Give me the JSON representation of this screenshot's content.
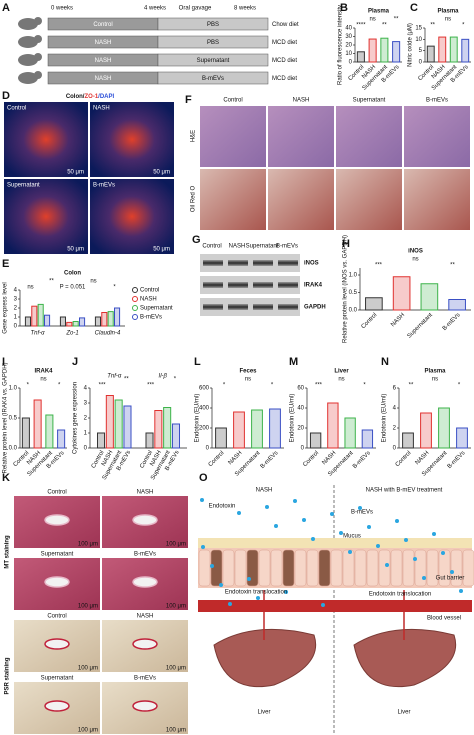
{
  "panel_labels": [
    "A",
    "B",
    "C",
    "D",
    "E",
    "F",
    "G",
    "H",
    "I",
    "J",
    "K",
    "L",
    "M",
    "N",
    "O"
  ],
  "schema": {
    "timeline": [
      "0 weeks",
      "4 weeks",
      "Oral gavage",
      "8 weeks"
    ],
    "rows": [
      {
        "group": "Control",
        "treatment": "PBS",
        "diet": "Chow diet"
      },
      {
        "group": "NASH",
        "treatment": "PBS",
        "diet": "MCD diet"
      },
      {
        "group": "NASH",
        "treatment": "Supernatant",
        "diet": "MCD diet"
      },
      {
        "group": "NASH",
        "treatment": "B-mEVs",
        "diet": "MCD diet"
      }
    ]
  },
  "panel_d": {
    "title_parts": [
      "Colon/",
      "ZO-1",
      "/DAPI"
    ],
    "labels": [
      "Control",
      "NASH",
      "Supernatant",
      "B-mEVs"
    ],
    "scale": "50 μm"
  },
  "panel_f": {
    "columns": [
      "Control",
      "NASH",
      "Supernatant",
      "B-mEVs"
    ],
    "rows": [
      "H&E",
      "Oil Red O"
    ]
  },
  "panel_g": {
    "columns": [
      "Control",
      "NASH",
      "Supernatant",
      "B-mEVs"
    ],
    "bands": [
      "iNOS",
      "IRAK4",
      "GAPDH"
    ]
  },
  "panel_k": {
    "labels": [
      "Control",
      "NASH",
      "Supernatant",
      "B-mEVs"
    ],
    "rows": [
      "MT staining",
      "PSR staining"
    ],
    "scale": "100 μm"
  },
  "panel_o": {
    "titles": [
      "NASH",
      "NASH with B-mEV treatment"
    ],
    "labels": [
      "Endotoxin",
      "B-mEVs",
      "Mucus",
      "Gut barrier",
      "Endotoxin translocation",
      "Endotoxin translocation",
      "Blood vessel",
      "Liver",
      "Liver"
    ]
  },
  "chart_data": [
    {
      "type": "bar",
      "title": "Plasma",
      "ylabel": "Ratio of fluorescence intensity",
      "categories": [
        "Control",
        "NASH",
        "Supernatant",
        "B-mEVs"
      ],
      "values": [
        12,
        27,
        28,
        24
      ],
      "colors": [
        "#333333",
        "#e0312f",
        "#3cb34a",
        "#3a4fc4"
      ],
      "ylim": [
        0,
        40
      ],
      "yticks": [
        0,
        10,
        20,
        30,
        40
      ],
      "annotations": [
        "****",
        "ns",
        "**",
        "**"
      ]
    },
    {
      "type": "bar",
      "title": "Plasma",
      "ylabel": "Nitric oxide (μM)",
      "categories": [
        "Control",
        "NASH",
        "Supernatant",
        "B-mEVs"
      ],
      "values": [
        7,
        11,
        11,
        10
      ],
      "colors": [
        "#333333",
        "#e0312f",
        "#3cb34a",
        "#3a4fc4"
      ],
      "ylim": [
        0,
        15
      ],
      "yticks": [
        0,
        5,
        10,
        15
      ],
      "annotations": [
        "**",
        "ns",
        "*"
      ]
    },
    {
      "type": "grouped_bar",
      "title": "Colon",
      "ylabel": "Gene express level",
      "categories": [
        "Tnf-α",
        "Zo-1",
        "Claudin-4"
      ],
      "legend": "right",
      "series": [
        {
          "name": "Control",
          "color": "#333333",
          "values": [
            1,
            1,
            1
          ]
        },
        {
          "name": "NASH",
          "color": "#e0312f",
          "values": [
            2.2,
            0.4,
            1.5
          ]
        },
        {
          "name": "Supernatant",
          "color": "#3cb34a",
          "values": [
            2.4,
            0.5,
            1.6
          ]
        },
        {
          "name": "B-mEVs",
          "color": "#3a4fc4",
          "values": [
            1.2,
            0.9,
            2
          ]
        }
      ],
      "ylim": [
        0,
        4
      ],
      "yticks": [
        0,
        1,
        2,
        3,
        4
      ],
      "annotations": [
        "ns",
        "**",
        "P = 0.051",
        "ns",
        "*"
      ]
    },
    {
      "type": "bar",
      "title": "iNOS",
      "ylabel": "Relative protein level (iNOS vs. GAPDH)",
      "categories": [
        "Control",
        "NASH",
        "Supernatant",
        "B-mEVs"
      ],
      "values": [
        0.35,
        0.95,
        0.75,
        0.3
      ],
      "colors": [
        "#333333",
        "#e0312f",
        "#3cb34a",
        "#3a4fc4"
      ],
      "ylim": [
        0,
        1.2
      ],
      "yticks": [
        {
          "value": 0,
          "label": "0.0"
        },
        {
          "value": 0.5,
          "label": "0.5"
        },
        {
          "value": 1,
          "label": "1.0"
        }
      ],
      "annotations": [
        "***",
        "ns",
        "**"
      ]
    },
    {
      "type": "bar",
      "title": "IRAK4",
      "ylabel": "Relative protein level (IRAK4 vs. GAPDH)",
      "categories": [
        "Control",
        "NASH",
        "Supernatant",
        "B-mEVs"
      ],
      "values": [
        0.5,
        0.8,
        0.55,
        0.3
      ],
      "colors": [
        "#333333",
        "#e0312f",
        "#3cb34a",
        "#3a4fc4"
      ],
      "ylim": [
        0,
        1
      ],
      "yticks": [
        {
          "value": 0,
          "label": "0.0"
        },
        {
          "value": 0.5,
          "label": "0.5"
        },
        {
          "value": 1,
          "label": "1.0"
        }
      ],
      "annotations": [
        "*",
        "ns",
        "*"
      ]
    },
    {
      "type": "grouped_bar",
      "title": "",
      "ylabel": "Cytokines gene expression",
      "categories": [
        "Tnf-α",
        "Il-β"
      ],
      "legend": "none",
      "series": [
        {
          "name": "Control",
          "color": "#333333",
          "values": [
            1,
            1
          ]
        },
        {
          "name": "NASH",
          "color": "#e0312f",
          "values": [
            3.5,
            2.5
          ]
        },
        {
          "name": "Supernatant",
          "color": "#3cb34a",
          "values": [
            3.2,
            2.7
          ]
        },
        {
          "name": "B-mEVs",
          "color": "#3a4fc4",
          "values": [
            2.8,
            1.6
          ]
        }
      ],
      "ylim": [
        0,
        4
      ],
      "yticks": [
        0,
        1,
        2,
        3,
        4
      ],
      "annotations": [
        "***",
        "**",
        "***",
        "*"
      ]
    },
    {
      "type": "bar",
      "title": "Feces",
      "ylabel": "Endotoxin (EU/ml)",
      "categories": [
        "Control",
        "NASH",
        "Supernatant",
        "B-mEVs"
      ],
      "values": [
        200,
        360,
        380,
        390
      ],
      "colors": [
        "#333333",
        "#e0312f",
        "#3cb34a",
        "#3a4fc4"
      ],
      "ylim": [
        0,
        600
      ],
      "yticks": [
        0,
        200,
        400,
        600
      ],
      "annotations": [
        "*",
        "ns",
        "*"
      ]
    },
    {
      "type": "bar",
      "title": "Liver",
      "ylabel": "Endotoxin (EU/ml)",
      "categories": [
        "Control",
        "NASH",
        "Supernatant",
        "B-mEVs"
      ],
      "values": [
        15,
        45,
        30,
        18
      ],
      "colors": [
        "#333333",
        "#e0312f",
        "#3cb34a",
        "#3a4fc4"
      ],
      "ylim": [
        0,
        60
      ],
      "yticks": [
        0,
        20,
        40,
        60
      ],
      "annotations": [
        "***",
        "ns",
        "*"
      ]
    },
    {
      "type": "bar",
      "title": "Plasma",
      "ylabel": "Endotoxin (EU/ml)",
      "categories": [
        "Control",
        "NASH",
        "Supernatant",
        "B-mEVs"
      ],
      "values": [
        1.5,
        3.5,
        4,
        2
      ],
      "colors": [
        "#333333",
        "#e0312f",
        "#3cb34a",
        "#3a4fc4"
      ],
      "ylim": [
        0,
        6
      ],
      "yticks": [
        0,
        2,
        4,
        6
      ],
      "annotations": [
        "**",
        "ns",
        "*"
      ]
    }
  ]
}
